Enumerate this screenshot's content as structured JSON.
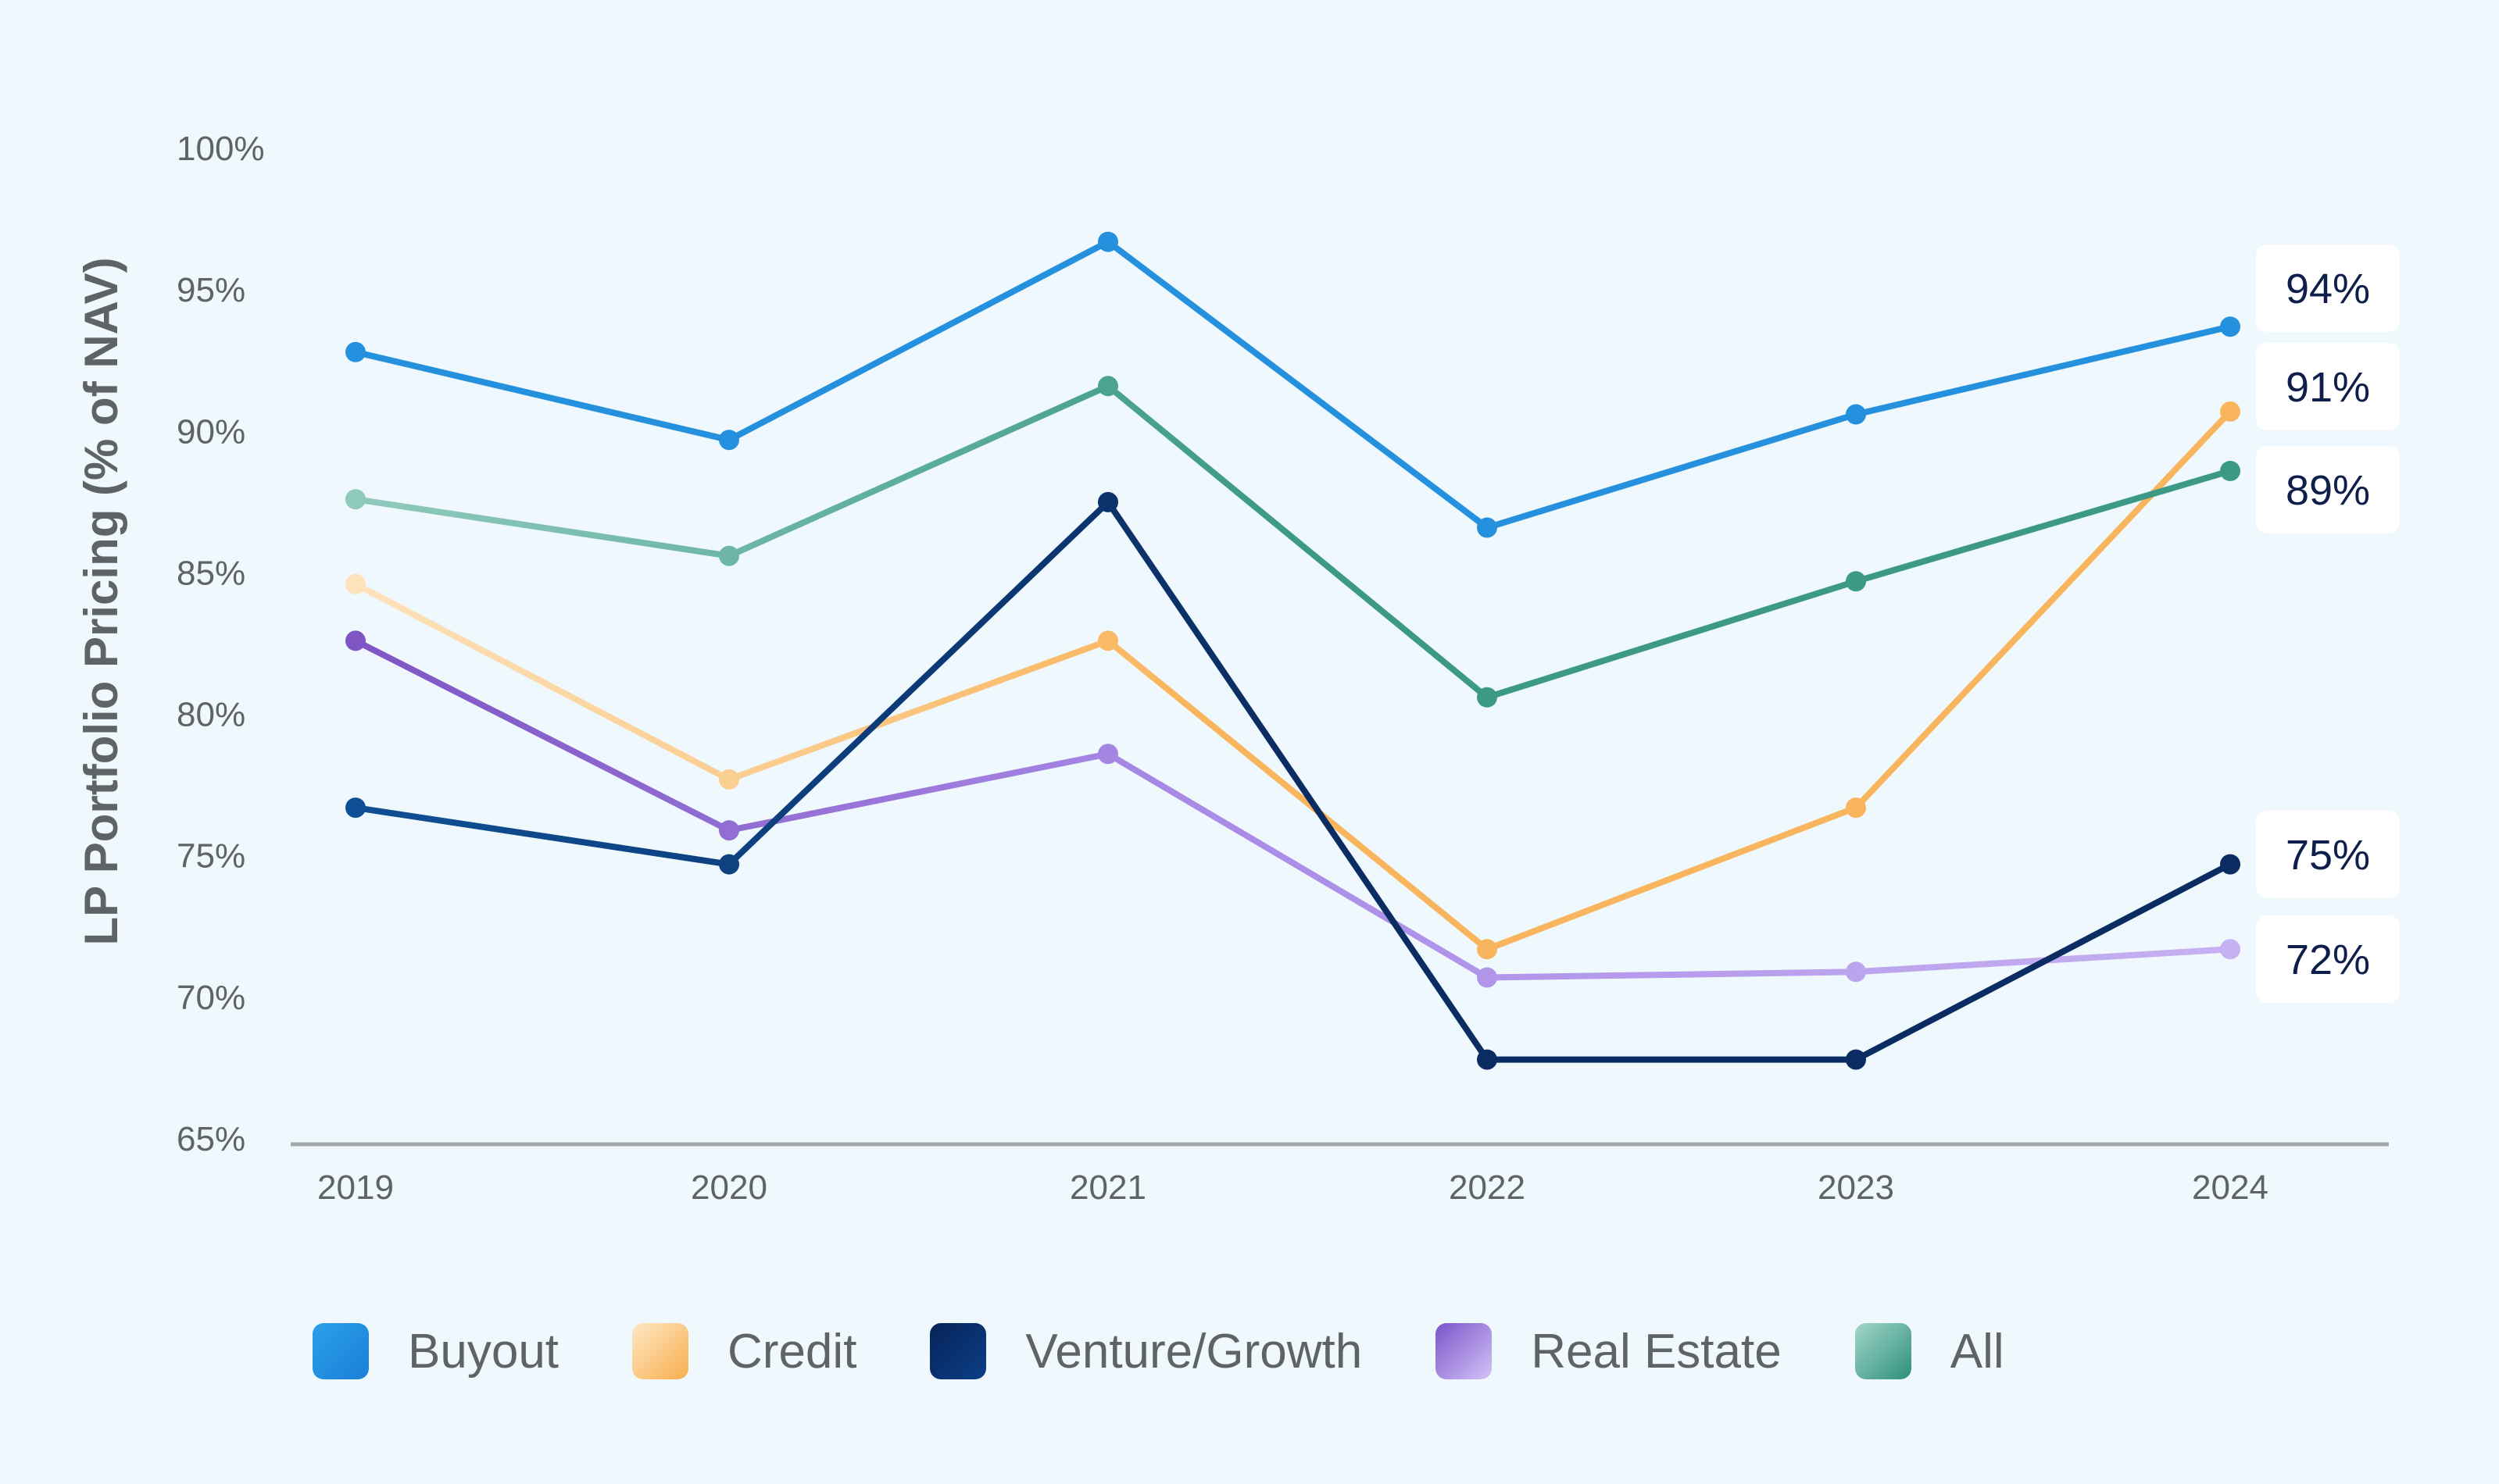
{
  "chart_data": {
    "type": "line",
    "title": "",
    "xlabel": "",
    "ylabel": "LP Portfolio Pricing (% of NAV)",
    "ylim": [
      65,
      100
    ],
    "yticks": [
      100,
      95,
      90,
      85,
      80,
      75,
      70,
      65
    ],
    "ytick_labels": [
      "100%",
      "95%",
      "90%",
      "85%",
      "80%",
      "75%",
      "70%",
      "65%"
    ],
    "categories": [
      "2019",
      "2020",
      "2021",
      "2022",
      "2023",
      "2024"
    ],
    "grid": false,
    "legend_position": "bottom",
    "series": [
      {
        "name": "Buyout",
        "values": [
          92.8,
          89.7,
          96.7,
          86.6,
          90.6,
          93.7
        ],
        "color": "#2490de",
        "end_label": "94%"
      },
      {
        "name": "Credit",
        "values": [
          84.6,
          77.7,
          82.6,
          71.7,
          76.7,
          90.7
        ],
        "color": "#f9b55d",
        "end_label": "91%"
      },
      {
        "name": "Venture/Growth",
        "values": [
          76.7,
          74.7,
          87.5,
          67.8,
          67.8,
          74.7
        ],
        "color": "#0b2c62",
        "end_label": "75%"
      },
      {
        "name": "Real Estate",
        "values": [
          82.6,
          75.9,
          78.6,
          70.7,
          70.9,
          71.7
        ],
        "color": "#a98be6",
        "end_label": "72%"
      },
      {
        "name": "All",
        "values": [
          87.6,
          85.6,
          91.6,
          80.6,
          84.7,
          88.6
        ],
        "color": "#3b9985",
        "end_label": "89%"
      }
    ]
  },
  "legend": {
    "items": [
      {
        "label": "Buyout",
        "color_start": "#2ba0ea",
        "color_end": "#1a7fd8"
      },
      {
        "label": "Credit",
        "color_start": "#fde7c5",
        "color_end": "#f9ae4d"
      },
      {
        "label": "Venture/Growth",
        "color_start": "#062358",
        "color_end": "#0c3f88"
      },
      {
        "label": "Real Estate",
        "color_start": "#7b55c9",
        "color_end": "#d4c2f7"
      },
      {
        "label": "All",
        "color_start": "#a3d6c9",
        "color_end": "#2e8f7c"
      }
    ]
  }
}
